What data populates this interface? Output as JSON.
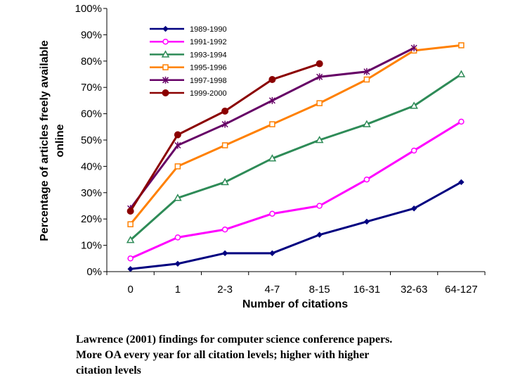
{
  "chart_data": {
    "type": "line",
    "categories": [
      "0",
      "1",
      "2-3",
      "4-7",
      "8-15",
      "16-31",
      "32-63",
      "64-127"
    ],
    "xlabel": "Number of citations",
    "ylabel_lines": [
      "Percentage of articles freely available",
      "online"
    ],
    "ylim": [
      0,
      100
    ],
    "yticks": [
      "0%",
      "10%",
      "20%",
      "30%",
      "40%",
      "50%",
      "60%",
      "70%",
      "80%",
      "90%",
      "100%"
    ],
    "grid": false,
    "legend_position": "top-left",
    "series": [
      {
        "name": "1989-1990",
        "color": "#000080",
        "marker": "diamond",
        "values": [
          1,
          3,
          7,
          7,
          14,
          19,
          24,
          34
        ]
      },
      {
        "name": "1991-1992",
        "color": "#ff00ff",
        "marker": "circle-open",
        "values": [
          5,
          13,
          16,
          22,
          25,
          35,
          46,
          57
        ]
      },
      {
        "name": "1993-1994",
        "color": "#2e8b57",
        "marker": "triangle-open",
        "values": [
          12,
          28,
          34,
          43,
          50,
          56,
          63,
          75
        ]
      },
      {
        "name": "1995-1996",
        "color": "#ff8000",
        "marker": "square-open",
        "values": [
          18,
          40,
          48,
          56,
          64,
          73,
          84,
          86
        ]
      },
      {
        "name": "1997-1998",
        "color": "#660066",
        "marker": "star",
        "values": [
          24,
          48,
          56,
          65,
          74,
          76,
          85,
          null
        ]
      },
      {
        "name": "1999-2000",
        "color": "#8b0000",
        "marker": "circle-filled",
        "values": [
          23,
          52,
          61,
          73,
          79,
          null,
          null,
          null
        ]
      }
    ]
  },
  "caption": {
    "line1": "Lawrence (2001) findings for computer science conference papers.",
    "line2": "More OA every year for all citation levels; higher with higher",
    "line3": "citation levels"
  }
}
